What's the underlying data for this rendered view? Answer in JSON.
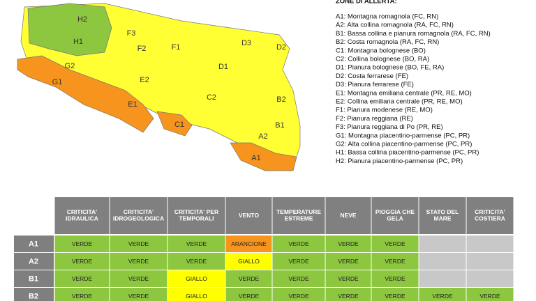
{
  "map": {
    "zone_labels": [
      "H2",
      "H1",
      "F3",
      "F2",
      "F1",
      "D3",
      "D2",
      "G2",
      "D1",
      "E2",
      "G1",
      "C2",
      "E1",
      "B2",
      "B1",
      "C1",
      "A2",
      "A1"
    ]
  },
  "legend": {
    "title": "ZONE DI ALLERTA:",
    "entries": [
      "A1: Montagna romagnola (FC, RN)",
      "A2: Alta collina romagnola (RA, FC, RN)",
      "B1: Bassa collina e pianura romagnola (RA, FC, RN)",
      "B2: Costa romagnola (RA, FC, RN)",
      "C1: Montagna bolognese (BO)",
      "C2: Collina bolognese (BO, RA)",
      "D1: Pianura bolognese (BO, FE, RA)",
      "D2: Costa ferrarese (FE)",
      "D3: Pianura ferrarese (FE)",
      "E1: Montagna emiliana centrale (PR, RE, MO)",
      "E2: Collina emiliana centrale (PR, RE, MO)",
      "F1: Pianura modenese (RE, MO)",
      "F2: Pianura reggiana (RE)",
      "F3: Pianura reggiana di Po (PR, RE)",
      "G1: Montagna piacentino-parmense (PC, PR)",
      "G2: Alta collina piacentino-parmense (PC, PR)",
      "H1: Bassa collina piacentino-parmense (PC, PR)",
      "H2: Pianura piacentino-parmense (PC, PR)"
    ]
  },
  "table": {
    "headers": [
      "CRITICITA' IDRAULICA",
      "CRITICITA' IDROGEOLOGICA",
      "CRITICITA' PER TEMPORALI",
      "VENTO",
      "TEMPERATURE ESTREME",
      "NEVE",
      "PIOGGIA CHE GELA",
      "STATO DEL MARE",
      "CRITICITA' COSTIERA"
    ],
    "colors": {
      "VERDE": "#8dc63f",
      "GIALLO": "#ffff00",
      "ARANCIONE": "#f7941d",
      "none": "#c8c8c8"
    },
    "rows": [
      {
        "zone": "A1",
        "cells": [
          "VERDE",
          "VERDE",
          "VERDE",
          "ARANCIONE",
          "VERDE",
          "VERDE",
          "VERDE",
          null,
          null
        ]
      },
      {
        "zone": "A2",
        "cells": [
          "VERDE",
          "VERDE",
          "VERDE",
          "GIALLO",
          "VERDE",
          "VERDE",
          "VERDE",
          null,
          null
        ]
      },
      {
        "zone": "B1",
        "cells": [
          "VERDE",
          "VERDE",
          "GIALLO",
          "VERDE",
          "VERDE",
          "VERDE",
          "VERDE",
          null,
          null
        ]
      },
      {
        "zone": "B2",
        "cells": [
          "VERDE",
          "VERDE",
          "GIALLO",
          "VERDE",
          "VERDE",
          "VERDE",
          "VERDE",
          "VERDE",
          "VERDE"
        ]
      }
    ]
  }
}
